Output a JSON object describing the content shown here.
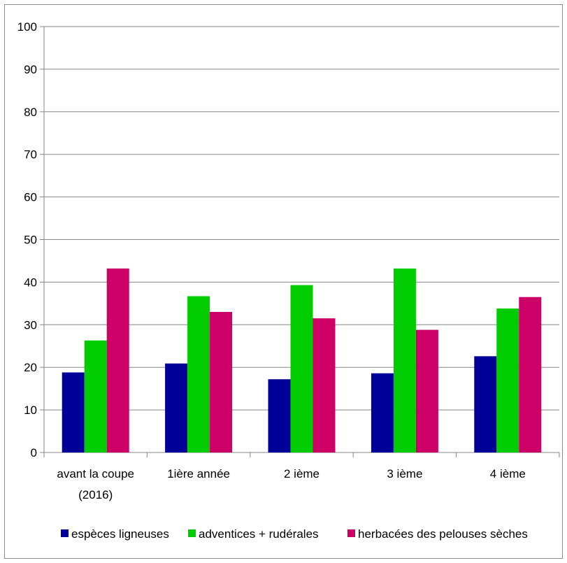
{
  "chart_data": {
    "type": "bar",
    "title": "",
    "xlabel": "",
    "ylabel": "",
    "ylim": [
      0,
      100
    ],
    "yticks": [
      0,
      10,
      20,
      30,
      40,
      50,
      60,
      70,
      80,
      90,
      100
    ],
    "grid": true,
    "legend_position": "bottom",
    "categories": [
      [
        "avant la coupe",
        "(2016)"
      ],
      [
        "1ière année"
      ],
      [
        "2 ième"
      ],
      [
        "3 ième"
      ],
      [
        "4 ième"
      ]
    ],
    "series": [
      {
        "name": "espèces ligneuses",
        "color": "#000099",
        "values": [
          18.8,
          20.9,
          17.2,
          18.6,
          22.6
        ]
      },
      {
        "name": "adventices + rudérales",
        "color": "#00cc00",
        "values": [
          26.3,
          36.7,
          39.3,
          43.2,
          33.8
        ]
      },
      {
        "name": "herbacées des pelouses sèches",
        "color": "#cc0066",
        "values": [
          43.2,
          33.0,
          31.5,
          28.8,
          36.5
        ]
      }
    ]
  }
}
